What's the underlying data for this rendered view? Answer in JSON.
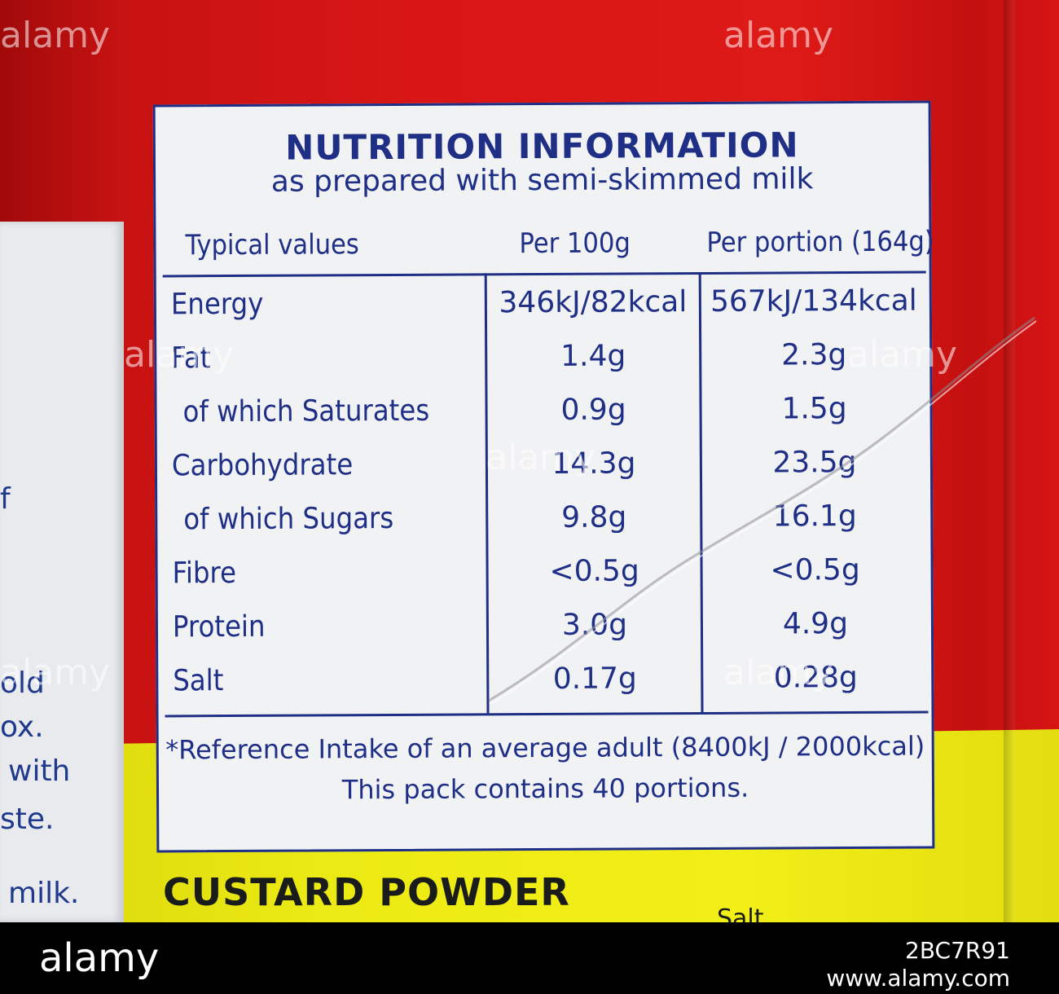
{
  "label": {
    "title": "NUTRITION INFORMATION",
    "subtitle": "as prepared with semi-skimmed milk",
    "headers": {
      "typical": "Typical values",
      "per100": "Per 100g",
      "portion": "Per portion (164g)"
    },
    "rows": [
      {
        "name": "Energy",
        "per100": "346kJ/82kcal",
        "portion": "567kJ/134kcal"
      },
      {
        "name": "Fat",
        "per100": "1.4g",
        "portion": "2.3g"
      },
      {
        "name": "of which Saturates",
        "per100": "0.9g",
        "portion": "1.5g"
      },
      {
        "name": "Carbohydrate",
        "per100": "14.3g",
        "portion": "23.5g"
      },
      {
        "name": "of which Sugars",
        "per100": "9.8g",
        "portion": "16.1g"
      },
      {
        "name": "Fibre",
        "per100": "<0.5g",
        "portion": "<0.5g"
      },
      {
        "name": "Protein",
        "per100": "3.0g",
        "portion": "4.9g"
      },
      {
        "name": "Salt",
        "per100": "0.17g",
        "portion": "0.28g"
      }
    ],
    "footnote": "*Reference Intake of an average adult (8400kJ / 2000kcal)",
    "portions": "This pack contains 40 portions."
  },
  "product_name": "CUSTARD POWDER",
  "below_fragment": "Salt",
  "side_label_fragments": [
    "f",
    "old",
    "ox.",
    "with",
    "ste.",
    "milk."
  ],
  "watermark": {
    "text": "alamy",
    "image_id": "2BC7R91",
    "url": "www.alamy.com"
  },
  "colors": {
    "ink": "#1f2f86",
    "red": "#d91616",
    "yellow": "#f2ee17",
    "panel": "#f1f2f4"
  }
}
